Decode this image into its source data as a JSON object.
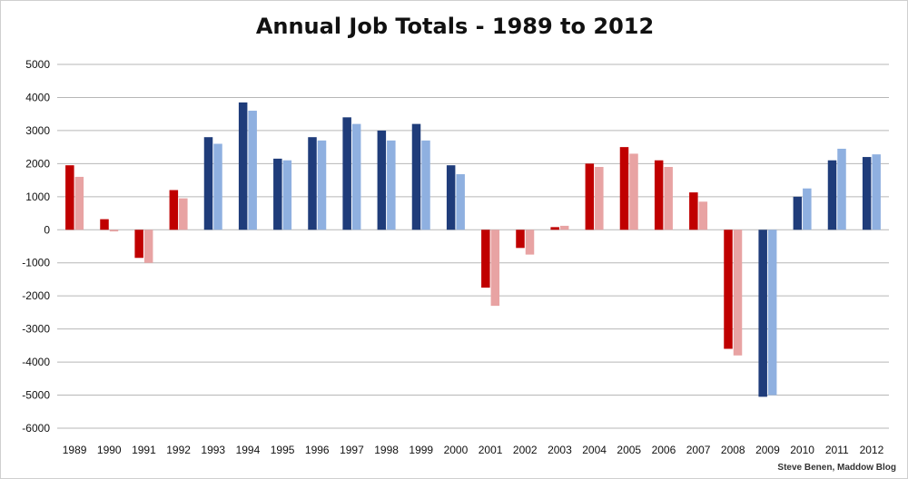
{
  "chart_data": {
    "type": "bar",
    "title": "Annual Job Totals - 1989 to 2012",
    "xlabel": "",
    "ylabel": "",
    "ylim": [
      -6000,
      5000
    ],
    "yticks": [
      5000,
      4000,
      3000,
      2000,
      1000,
      0,
      -1000,
      -2000,
      -3000,
      -4000,
      -5000,
      -6000
    ],
    "grid": true,
    "categories": [
      "1989",
      "1990",
      "1991",
      "1992",
      "1993",
      "1994",
      "1995",
      "1996",
      "1997",
      "1998",
      "1999",
      "2000",
      "2001",
      "2002",
      "2003",
      "2004",
      "2005",
      "2006",
      "2007",
      "2008",
      "2009",
      "2010",
      "2011",
      "2012"
    ],
    "series": [
      {
        "values": [
          1950,
          320,
          -850,
          1200,
          2800,
          3850,
          2150,
          2800,
          3400,
          3000,
          3200,
          1950,
          -1750,
          -550,
          80,
          2000,
          2500,
          2100,
          1130,
          -3600,
          -5050,
          1000,
          2100,
          2200
        ]
      },
      {
        "values": [
          1600,
          -50,
          -1000,
          950,
          2600,
          3600,
          2100,
          2700,
          3200,
          2700,
          2700,
          1680,
          -2300,
          -750,
          120,
          1900,
          2300,
          1900,
          850,
          -3800,
          -5000,
          1250,
          2450,
          2280
        ]
      }
    ],
    "bar_party": [
      "R",
      "R",
      "R",
      "R",
      "D",
      "D",
      "D",
      "D",
      "D",
      "D",
      "D",
      "D",
      "R",
      "R",
      "R",
      "R",
      "R",
      "R",
      "R",
      "R",
      "D",
      "D",
      "D",
      "D"
    ],
    "colors": {
      "R_primary": "#c00000",
      "R_secondary": "#e8a3a3",
      "D_primary": "#1f3c7a",
      "D_secondary": "#8fb0e0",
      "grid": "#b7b7b7"
    }
  },
  "credit": "Steve Benen, Maddow Blog"
}
